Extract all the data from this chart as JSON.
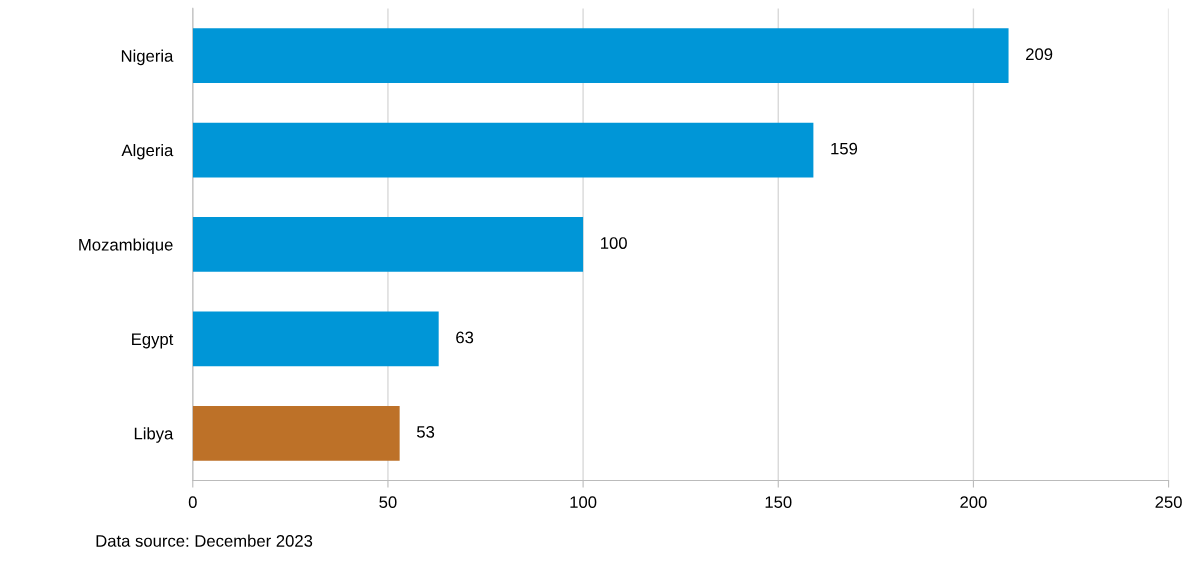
{
  "chart_data": {
    "type": "bar",
    "orientation": "horizontal",
    "categories": [
      "Nigeria",
      "Algeria",
      "Mozambique",
      "Egypt",
      "Libya"
    ],
    "values": [
      209,
      159,
      100,
      63,
      53
    ],
    "colors": [
      "#0096d7",
      "#0096d7",
      "#0096d7",
      "#0096d7",
      "#bd7128"
    ],
    "data_labels": true,
    "xlim": [
      0,
      250
    ],
    "xticks": [
      0,
      50,
      100,
      150,
      200,
      250
    ],
    "grid": "x",
    "annotations": [
      "Data source: December 2023"
    ]
  }
}
